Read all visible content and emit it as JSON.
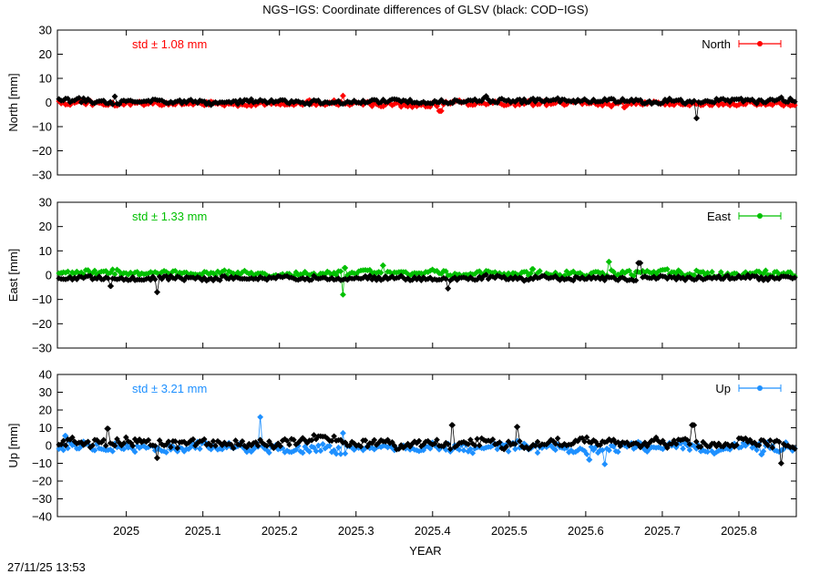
{
  "title": "NGS−IGS: Coordinate differences of GLSV (black: COD−IGS)",
  "timestamp": "27/11/25 13:53",
  "chart_data": {
    "type": "line",
    "xlabel": "YEAR",
    "xlim": [
      2024.91,
      2025.875
    ],
    "xticks": [
      "2025",
      "2025.1",
      "2025.2",
      "2025.3",
      "2025.4",
      "2025.5",
      "2025.6",
      "2025.7",
      "2025.8"
    ],
    "panels": [
      {
        "id": "north",
        "ylabel": "North [mm]",
        "ylim": [
          -30,
          30
        ],
        "yticks": [
          "30",
          "20",
          "10",
          "0",
          "−10",
          "−20",
          "−30"
        ],
        "std_label": "std ± 1.08 mm",
        "legend": "North",
        "color": "#ff0000",
        "series": [
          {
            "name": "North",
            "color": "#ff0000",
            "amp": 1.1,
            "bias": -0.4,
            "spikes": [
              [
                2025.283,
                2.8
              ],
              [
                2025.41,
                -3.5
              ],
              [
                2025.65,
                -2.0
              ]
            ]
          },
          {
            "color": "#000000",
            "amp": 1.0,
            "bias": 0.6,
            "spikes": [
              [
                2025.745,
                -6.5
              ],
              [
                2025.47,
                2.6
              ],
              [
                2024.985,
                2.5
              ]
            ]
          }
        ]
      },
      {
        "id": "east",
        "ylabel": "East [mm]",
        "ylim": [
          -30,
          30
        ],
        "yticks": [
          "30",
          "20",
          "10",
          "0",
          "−10",
          "−20",
          "−30"
        ],
        "std_label": "std ± 1.33 mm",
        "legend": "East",
        "color": "#00c000",
        "series": [
          {
            "name": "East",
            "color": "#00c000",
            "amp": 1.3,
            "bias": 0.8,
            "spikes": [
              [
                2025.283,
                -8.0
              ],
              [
                2025.285,
                3.0
              ],
              [
                2025.335,
                4.0
              ],
              [
                2025.63,
                5.5
              ],
              [
                2025.53,
                2.5
              ]
            ]
          },
          {
            "color": "#000000",
            "amp": 1.0,
            "bias": -1.3,
            "spikes": [
              [
                2025.04,
                -7.0
              ],
              [
                2024.98,
                -4.5
              ],
              [
                2025.42,
                -5.5
              ],
              [
                2025.67,
                5.0
              ]
            ]
          }
        ]
      },
      {
        "id": "up",
        "ylabel": "Up [mm]",
        "ylim": [
          -40,
          40
        ],
        "yticks": [
          "40",
          "30",
          "20",
          "10",
          "0",
          "−10",
          "−20",
          "−30",
          "−40"
        ],
        "std_label": "std ± 3.21 mm",
        "legend": "Up",
        "color": "#1e90ff",
        "series": [
          {
            "name": "Up",
            "color": "#1e90ff",
            "amp": 3.0,
            "bias": -1.2,
            "spikes": [
              [
                2025.175,
                16.0
              ],
              [
                2024.92,
                5.5
              ],
              [
                2025.283,
                7.0
              ],
              [
                2025.625,
                -10.5
              ],
              [
                2025.605,
                -8.0
              ],
              [
                2025.83,
                -5.0
              ]
            ]
          },
          {
            "color": "#000000",
            "amp": 2.8,
            "bias": 1.2,
            "spikes": [
              [
                2024.975,
                9.5
              ],
              [
                2025.74,
                11.5
              ],
              [
                2025.425,
                11.5
              ],
              [
                2025.51,
                10.5
              ],
              [
                2025.04,
                -7.0
              ],
              [
                2025.855,
                -10.0
              ]
            ]
          }
        ]
      }
    ]
  }
}
